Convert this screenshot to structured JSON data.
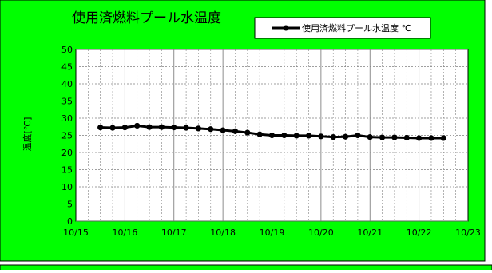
{
  "colors": {
    "background": "#00ff00",
    "plot_area": "#ffffff",
    "grid": "#808080",
    "series": "#000000",
    "border": "#000000"
  },
  "chart_data": {
    "type": "line",
    "title": "使用済燃料プール水温度",
    "xlabel": "",
    "ylabel": "温度[℃]",
    "ylim": [
      0,
      50
    ],
    "y_ticks": [
      "0",
      "5",
      "10",
      "15",
      "20",
      "25",
      "30",
      "35",
      "40",
      "45",
      "50"
    ],
    "x_ticks": [
      "10/15",
      "10/16",
      "10/17",
      "10/18",
      "10/19",
      "10/20",
      "10/21",
      "10/22",
      "10/23"
    ],
    "grid": true,
    "legend_position": "top-right",
    "series": [
      {
        "name": "使用済燃料プール水温度 ℃",
        "x": [
          "10/15 12:00",
          "10/15 18:00",
          "10/16 00:00",
          "10/16 06:00",
          "10/16 12:00",
          "10/16 18:00",
          "10/17 00:00",
          "10/17 06:00",
          "10/17 12:00",
          "10/17 18:00",
          "10/18 00:00",
          "10/18 06:00",
          "10/18 12:00",
          "10/18 18:00",
          "10/19 00:00",
          "10/19 06:00",
          "10/19 12:00",
          "10/19 18:00",
          "10/20 00:00",
          "10/20 06:00",
          "10/20 12:00",
          "10/20 18:00",
          "10/21 00:00",
          "10/21 06:00",
          "10/21 12:00",
          "10/21 18:00",
          "10/22 00:00",
          "10/22 06:00",
          "10/22 12:00"
        ],
        "values": [
          27.3,
          27.2,
          27.3,
          27.8,
          27.4,
          27.4,
          27.3,
          27.2,
          27.0,
          26.8,
          26.5,
          26.2,
          25.8,
          25.3,
          25.0,
          25.0,
          24.9,
          24.9,
          24.7,
          24.5,
          24.6,
          25.0,
          24.5,
          24.4,
          24.4,
          24.3,
          24.2,
          24.2,
          24.2
        ]
      }
    ]
  }
}
